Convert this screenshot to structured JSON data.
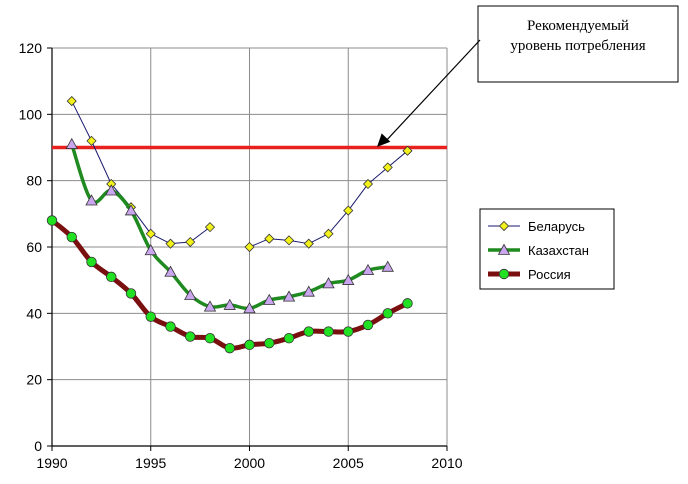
{
  "chart_data": {
    "type": "line",
    "xlim": [
      1990,
      2010
    ],
    "ylim": [
      0,
      120
    ],
    "x_ticks": [
      "1990",
      "1995",
      "2000",
      "2005",
      "2010"
    ],
    "y_ticks": [
      "0",
      "20",
      "40",
      "60",
      "80",
      "100",
      "120"
    ],
    "grid": true,
    "legend_position": "right",
    "reference_line": {
      "value": 90,
      "color": "#e8201e"
    },
    "annotation": {
      "lines": [
        "Рекомендуемый",
        "уровень потребления"
      ],
      "arrow_target": {
        "x": 1994,
        "y": 95
      }
    },
    "series": [
      {
        "name": "Беларусь",
        "color": "#1a1a6e",
        "marker": "diamond",
        "marker_color": "#f2f21a",
        "points": [
          [
            1991,
            104
          ],
          [
            1992,
            92
          ],
          [
            1993,
            79
          ],
          [
            1994,
            72
          ],
          [
            1995,
            64
          ],
          [
            1996,
            61
          ],
          [
            1997,
            61.5
          ],
          [
            1998,
            66
          ],
          [
            1999,
            null
          ],
          [
            2000,
            60
          ],
          [
            2001,
            62.5
          ],
          [
            2002,
            62
          ],
          [
            2003,
            61
          ],
          [
            2004,
            64
          ],
          [
            2005,
            71
          ],
          [
            2006,
            79
          ],
          [
            2007,
            84
          ],
          [
            2008,
            89
          ]
        ]
      },
      {
        "name": "Казахстан",
        "color": "#1f8a1f",
        "marker": "triangle",
        "marker_color": "#c9a6ee",
        "points": [
          [
            1991,
            91
          ],
          [
            1992,
            74
          ],
          [
            1993,
            77
          ],
          [
            1994,
            71
          ],
          [
            1995,
            59
          ],
          [
            1996,
            52.5
          ],
          [
            1997,
            45.5
          ],
          [
            1998,
            42
          ],
          [
            1999,
            42.5
          ],
          [
            2000,
            41.5
          ],
          [
            2001,
            44
          ],
          [
            2002,
            45
          ],
          [
            2003,
            46.5
          ],
          [
            2004,
            49
          ],
          [
            2005,
            50
          ],
          [
            2006,
            53
          ],
          [
            2007,
            54
          ]
        ]
      },
      {
        "name": "Россия",
        "color": "#7a0f0f",
        "marker": "circle",
        "marker_color": "#22e022",
        "points": [
          [
            1990,
            68
          ],
          [
            1991,
            63
          ],
          [
            1992,
            55.5
          ],
          [
            1993,
            51
          ],
          [
            1994,
            46
          ],
          [
            1995,
            39
          ],
          [
            1996,
            36
          ],
          [
            1997,
            33
          ],
          [
            1998,
            32.5
          ],
          [
            1999,
            29.5
          ],
          [
            2000,
            30.5
          ],
          [
            2001,
            31
          ],
          [
            2002,
            32.5
          ],
          [
            2003,
            34.5
          ],
          [
            2004,
            34.5
          ],
          [
            2005,
            34.5
          ],
          [
            2006,
            36.5
          ],
          [
            2007,
            40
          ],
          [
            2008,
            43
          ]
        ]
      }
    ]
  }
}
